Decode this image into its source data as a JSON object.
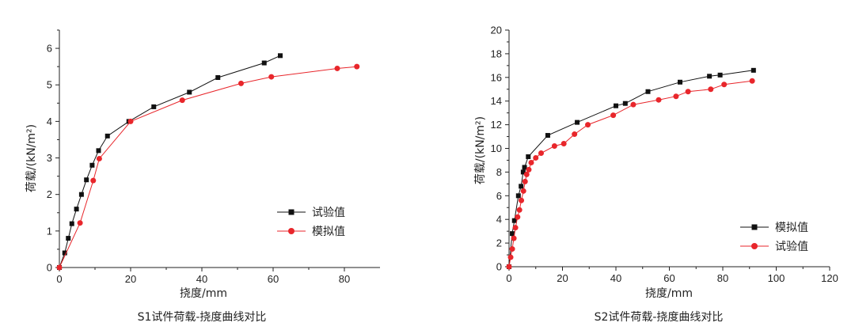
{
  "chart_data": [
    {
      "type": "line",
      "caption": "S1试件荷载-挠度曲线对比",
      "xlabel": "挠度/mm",
      "ylabel": "荷载/(kN/m²)",
      "xlim": [
        0,
        90
      ],
      "ylim": [
        0,
        6.5
      ],
      "xticks": [
        0,
        20,
        40,
        60,
        80
      ],
      "yticks": [
        0,
        1,
        2,
        3,
        4,
        5,
        6
      ],
      "legend_position": "lower-right",
      "series": [
        {
          "name": "试验值",
          "color": "#111111",
          "marker": "square",
          "x": [
            0,
            1.5,
            2.5,
            3.5,
            4.8,
            6.2,
            7.6,
            9.2,
            11,
            13.5,
            19.5,
            26.5,
            36.5,
            44.5,
            57.5,
            62
          ],
          "y": [
            0,
            0.4,
            0.8,
            1.2,
            1.6,
            2.0,
            2.4,
            2.8,
            3.2,
            3.6,
            4.0,
            4.4,
            4.8,
            5.2,
            5.6,
            5.8
          ]
        },
        {
          "name": "模拟值",
          "color": "#e8262b",
          "marker": "circle",
          "x": [
            0,
            5.8,
            9.5,
            11.2,
            20,
            34.5,
            51,
            59.5,
            78,
            83.5
          ],
          "y": [
            0,
            1.22,
            2.38,
            2.98,
            4.0,
            4.58,
            5.04,
            5.22,
            5.45,
            5.5
          ]
        }
      ]
    },
    {
      "type": "line",
      "caption": "S2试件荷载-挠度曲线对比",
      "xlabel": "挠度/mm",
      "ylabel": "荷载/(kN/m²)",
      "xlim": [
        0,
        120
      ],
      "ylim": [
        0,
        20
      ],
      "xticks": [
        0,
        20,
        40,
        60,
        80,
        100,
        120
      ],
      "yticks": [
        0,
        2,
        4,
        6,
        8,
        10,
        12,
        14,
        16,
        18,
        20
      ],
      "legend_position": "lower-right",
      "series": [
        {
          "name": "模拟值",
          "color": "#111111",
          "marker": "square",
          "x": [
            0,
            1.2,
            2.0,
            3.5,
            4.5,
            5.3,
            5.8,
            7.2,
            14.5,
            25.5,
            40,
            43.5,
            52,
            64,
            75,
            79,
            91.5
          ],
          "y": [
            0,
            2.8,
            3.9,
            6.0,
            6.8,
            8.0,
            8.4,
            9.3,
            11.1,
            12.2,
            13.6,
            13.8,
            14.8,
            15.6,
            16.1,
            16.2,
            16.6
          ]
        },
        {
          "name": "试验值",
          "color": "#e8262b",
          "marker": "circle",
          "x": [
            0,
            0.6,
            1.2,
            1.8,
            2.4,
            3.2,
            3.9,
            4.6,
            5.4,
            6.0,
            6.6,
            7.4,
            8.3,
            10,
            12,
            17,
            20.5,
            24.5,
            29.5,
            39,
            46.5,
            56,
            62.5,
            67,
            75.5,
            80.5,
            91
          ],
          "y": [
            0,
            0.8,
            1.5,
            2.4,
            3.3,
            4.2,
            4.8,
            5.6,
            6.4,
            7.2,
            7.8,
            8.2,
            8.8,
            9.2,
            9.6,
            10.2,
            10.4,
            11.2,
            12.0,
            12.8,
            13.7,
            14.1,
            14.4,
            14.8,
            15.0,
            15.4,
            15.7
          ]
        }
      ]
    }
  ]
}
